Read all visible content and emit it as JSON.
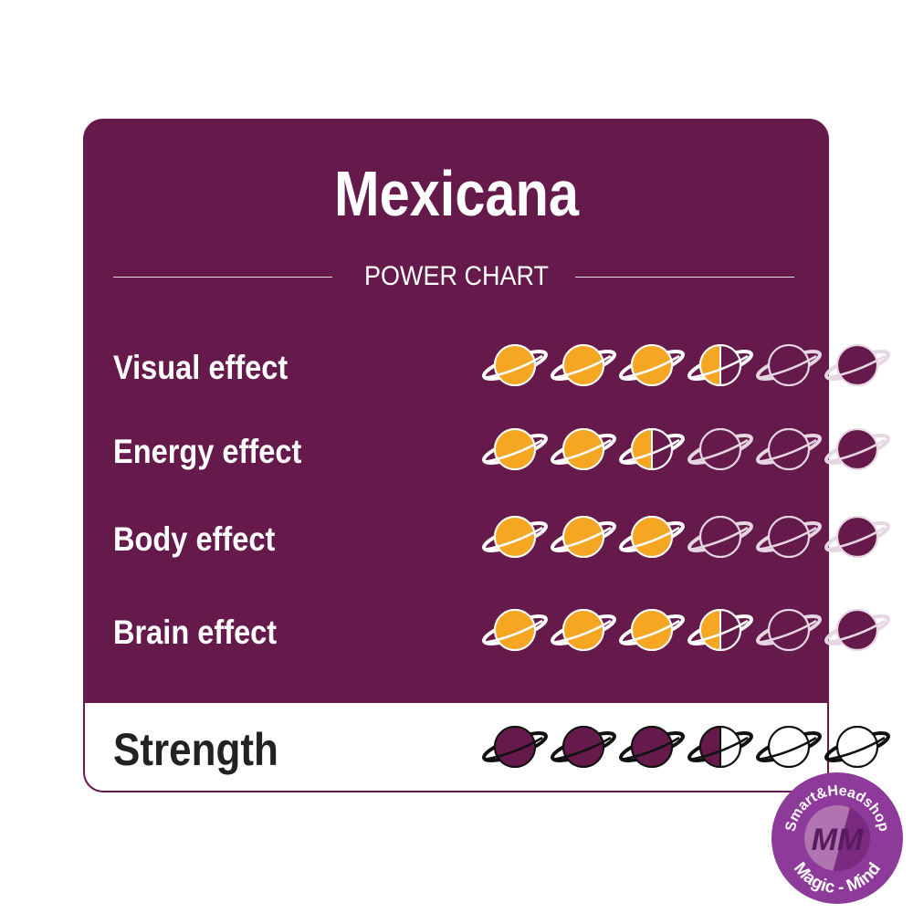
{
  "title": "Mexicana",
  "subtitle": "POWER CHART",
  "max_rating": 6,
  "effects": [
    {
      "label": "Visual effect",
      "rating": 3.5
    },
    {
      "label": "Energy effect",
      "rating": 2.5
    },
    {
      "label": "Body effect",
      "rating": 3
    },
    {
      "label": "Brain effect",
      "rating": 3.5
    }
  ],
  "strength": {
    "label": "Strength",
    "rating": 3.5
  },
  "logo": {
    "top_text": "Smart&Headshop",
    "bottom_text": "Magic - Mind",
    "monogram": "MM"
  },
  "colors": {
    "panel": "#651a4b",
    "effect_fill": "#f5a623",
    "strength_fill": "#651a4b",
    "logo": "#8e3a9a"
  }
}
